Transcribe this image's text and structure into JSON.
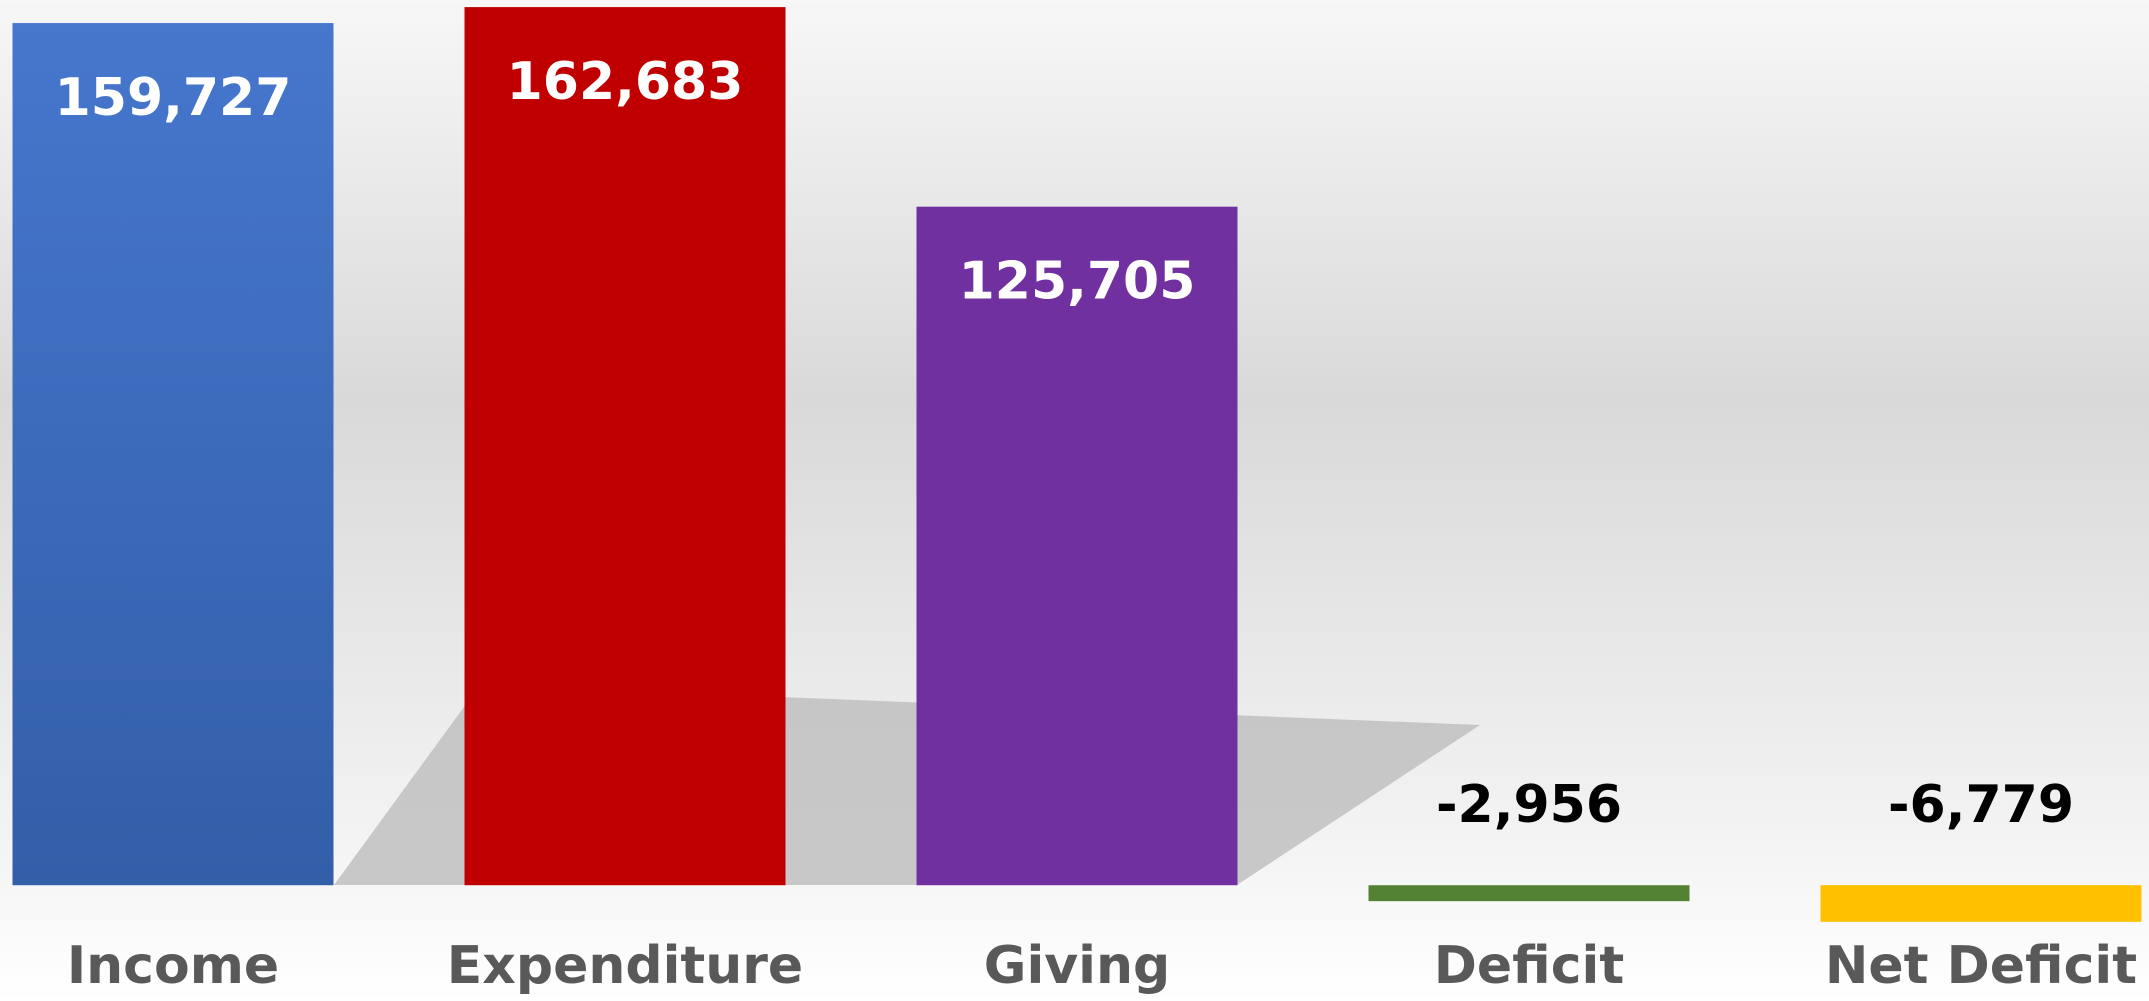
{
  "chart_data": {
    "type": "bar",
    "categories": [
      "Income",
      "Expenditure",
      "Giving",
      "Deficit",
      "Net Deficit"
    ],
    "values": [
      159727,
      162683,
      125705,
      -2956,
      -6779
    ],
    "value_labels": [
      "159,727",
      "162,683",
      "125,705",
      "-2,956",
      "-6,779"
    ],
    "colors": [
      "#4472c4",
      "#c00000",
      "#7030a0",
      "#548235",
      "#ffc000"
    ],
    "ylim": [
      -7000,
      164000
    ]
  }
}
